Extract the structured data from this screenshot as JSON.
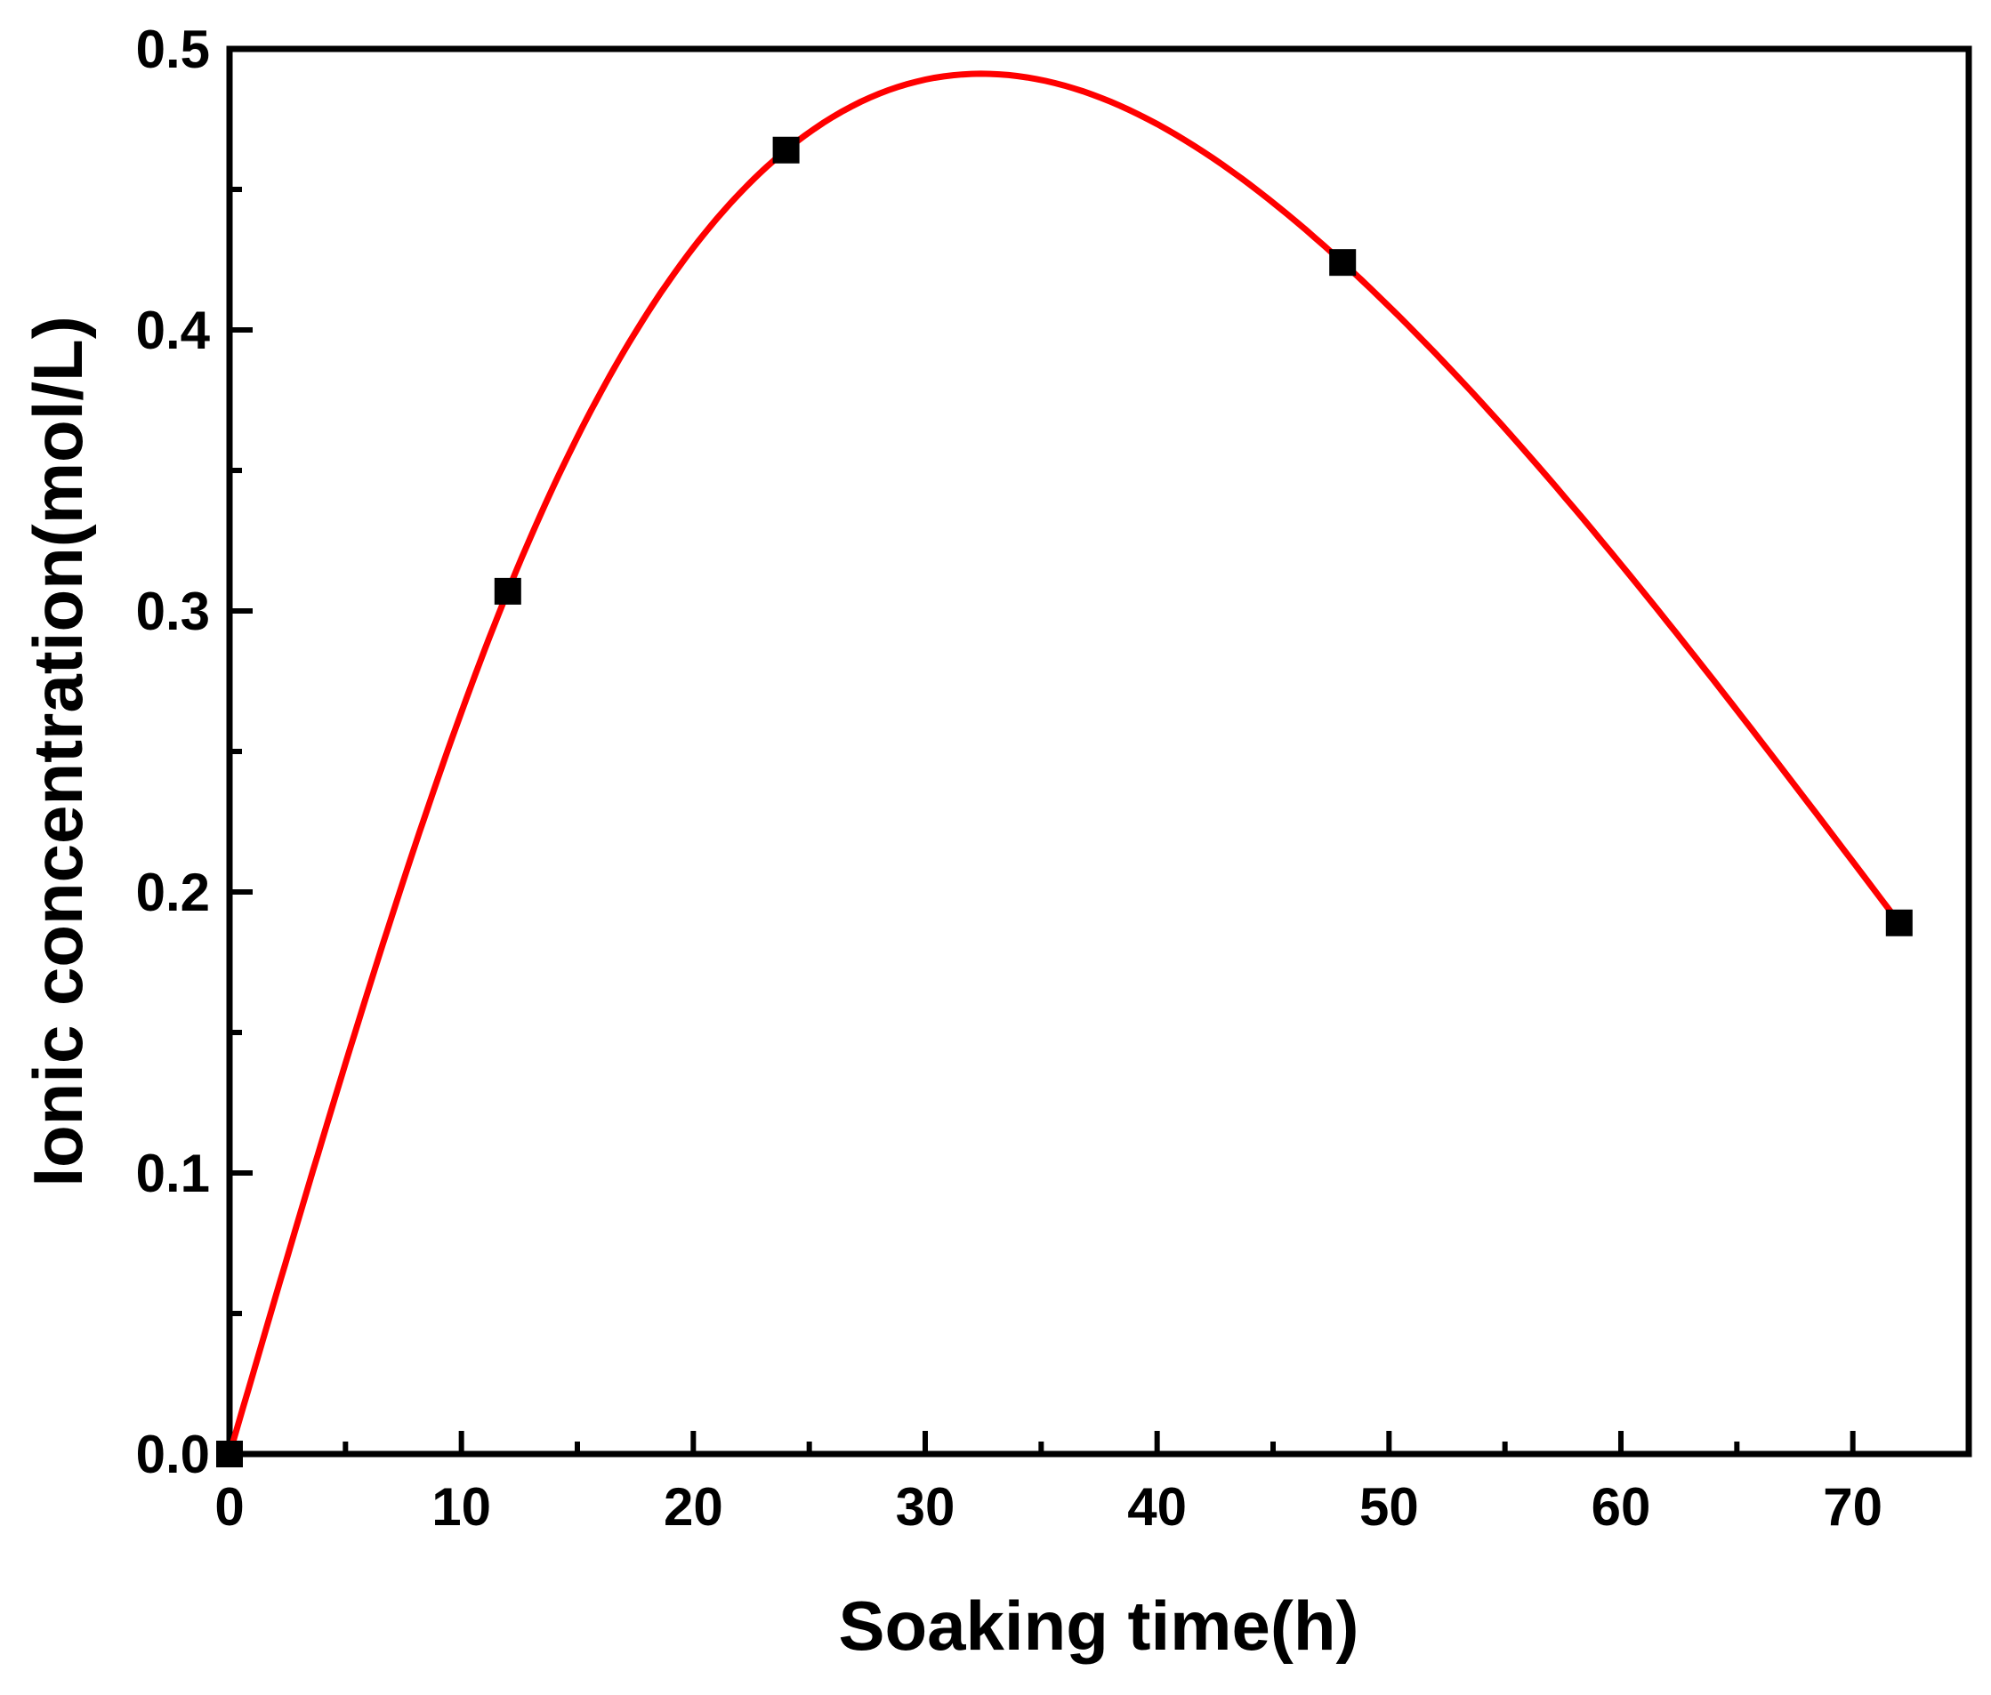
{
  "chart_data": {
    "type": "line",
    "xlabel": "Soaking time(h)",
    "ylabel": "Ionic concentration(mol/L)",
    "xlim": [
      0,
      75
    ],
    "ylim": [
      0,
      0.5
    ],
    "x_ticks": [
      0,
      10,
      20,
      30,
      40,
      50,
      60,
      70
    ],
    "x_tick_labels": [
      "0",
      "10",
      "20",
      "30",
      "40",
      "50",
      "60",
      "70"
    ],
    "y_ticks": [
      0.0,
      0.1,
      0.2,
      0.3,
      0.4,
      0.5
    ],
    "y_tick_labels": [
      "0.0",
      "0.1",
      "0.2",
      "0.3",
      "0.4",
      "0.5"
    ],
    "grid": false,
    "series": [
      {
        "marker": "square",
        "color": "#000000",
        "x": [
          0,
          12,
          24,
          48,
          72
        ],
        "y": [
          0.0,
          0.307,
          0.464,
          0.424,
          0.189
        ]
      }
    ],
    "fit_curve": {
      "color": "#ff0000",
      "style": "smooth spline through points"
    }
  }
}
